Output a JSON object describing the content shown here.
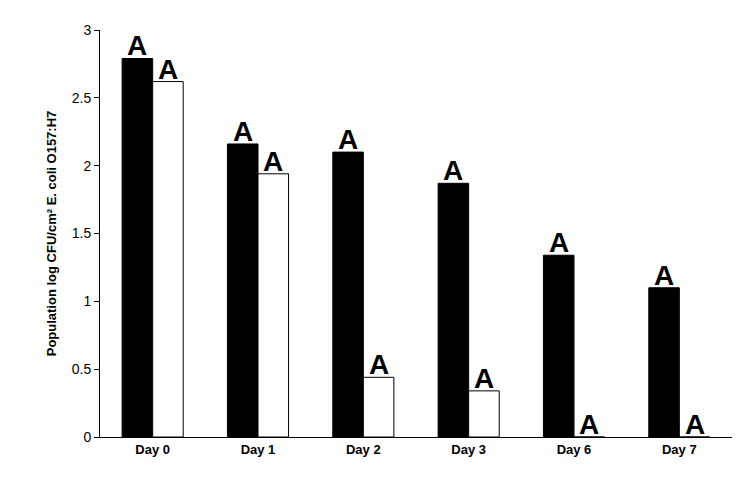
{
  "chart_data": {
    "type": "bar",
    "y_label": "Population log CFU/cm² E. coli O157:H7",
    "categories": [
      "Day 0",
      "Day 1",
      "Day 2",
      "Day 3",
      "Day 6",
      "Day 7"
    ],
    "series": [
      {
        "color": "#000000",
        "values": [
          2.79,
          2.16,
          2.1,
          1.87,
          1.34,
          1.1
        ],
        "annotations": [
          "A",
          "A",
          "A",
          "A",
          "A",
          "A"
        ]
      },
      {
        "color": "#ffffff",
        "values": [
          2.62,
          1.94,
          0.44,
          0.34,
          0,
          0
        ],
        "annotations": [
          "A",
          "A",
          "A",
          "A",
          "A",
          "A"
        ]
      }
    ],
    "ylim": [
      0,
      3
    ],
    "yticks": [
      0,
      0.5,
      1,
      1.5,
      2,
      2.5,
      3
    ],
    "grid": false
  }
}
